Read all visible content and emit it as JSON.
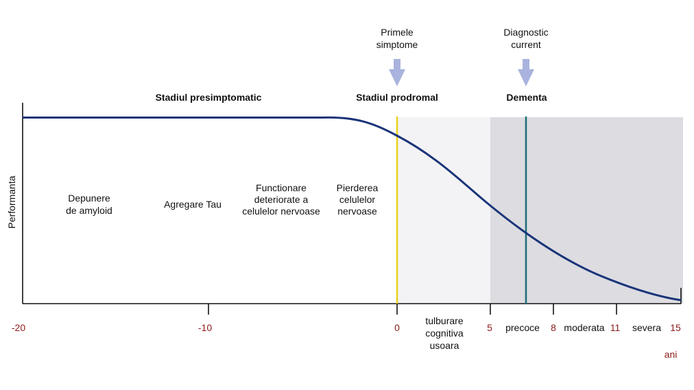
{
  "colors": {
    "curve": "#1a3479",
    "axis": "#111111",
    "prodromal_band": "#f3f3f5",
    "dementia_band": "#dcdce1",
    "line_first_symptoms": "#e9d21c",
    "line_current_diagnosis": "#1f6f7a",
    "arrow": "#a9b3dd",
    "tick_label": "#8b1a1a"
  },
  "axis": {
    "y_label": "Performanta",
    "x_unit": "ani",
    "x_range": [
      -20,
      15
    ],
    "ticks": [
      {
        "value": -20,
        "label": "-20"
      },
      {
        "value": -10,
        "label": "-10"
      },
      {
        "value": 0,
        "label": "0"
      },
      {
        "value": 5,
        "label": "5"
      },
      {
        "value": 8,
        "label": "8"
      },
      {
        "value": 11,
        "label": "11"
      },
      {
        "value": 15,
        "label": "15"
      }
    ]
  },
  "stages": {
    "presymptomatic": "Stadiul presimptomatic",
    "prodromal": "Stadiul prodromal",
    "dementia": "Dementa"
  },
  "markers": {
    "first_symptoms": {
      "line1": "Primele",
      "line2": "simptome",
      "x": 0
    },
    "current_diagnosis": {
      "line1": "Diagnostic",
      "line2": "current",
      "x": 6.9
    }
  },
  "processes": [
    {
      "lines": [
        "Depunere",
        "de amyloid"
      ]
    },
    {
      "lines": [
        "Agregare Tau"
      ]
    },
    {
      "lines": [
        "Functionare",
        "deteriorate a",
        "celulelor nervoase"
      ]
    },
    {
      "lines": [
        "Pierderea",
        "celulelor",
        "nervoase"
      ]
    }
  ],
  "phases": {
    "mci": [
      "tulburare",
      "cognitiva",
      "usoara"
    ],
    "early": "precoce",
    "moderate": "moderata",
    "severe": "severa"
  }
}
